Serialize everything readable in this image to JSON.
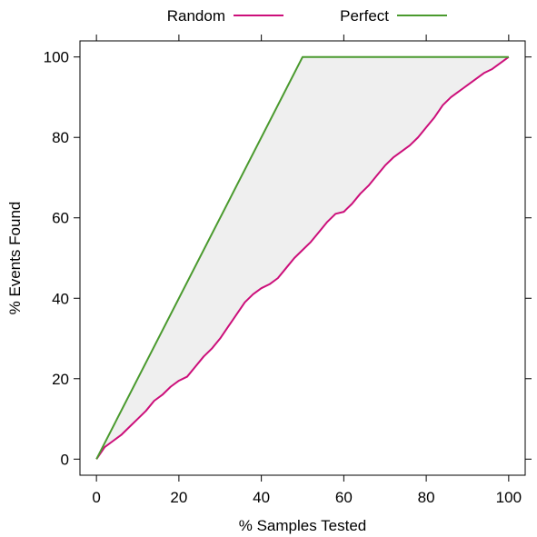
{
  "chart_data": {
    "type": "line",
    "xlabel": "% Samples Tested",
    "ylabel": "% Events Found",
    "xlim": [
      -4,
      104
    ],
    "ylim": [
      -4,
      104
    ],
    "xticks": [
      0,
      20,
      40,
      60,
      80,
      100
    ],
    "yticks": [
      0,
      20,
      40,
      60,
      80,
      100
    ],
    "grid": false,
    "legend": {
      "placement": "top"
    },
    "series": [
      {
        "name": "Random",
        "color": "#cc0f7a",
        "x": [
          0,
          1,
          2,
          4,
          6,
          8,
          10,
          12,
          14,
          16,
          18,
          20,
          22,
          24,
          26,
          28,
          30,
          32,
          34,
          36,
          38,
          40,
          42,
          44,
          46,
          48,
          50,
          52,
          54,
          56,
          58,
          60,
          62,
          64,
          66,
          68,
          70,
          72,
          74,
          76,
          78,
          80,
          82,
          84,
          86,
          88,
          90,
          92,
          94,
          96,
          98,
          100
        ],
        "y": [
          0,
          1.5,
          3,
          4.5,
          6,
          8,
          10,
          12,
          14.5,
          16,
          18,
          19.5,
          20.5,
          23,
          25.5,
          27.5,
          30,
          33,
          36,
          39,
          41,
          42.5,
          43.5,
          45,
          47.5,
          50,
          52,
          54,
          56.5,
          59,
          61,
          61.5,
          63.5,
          66,
          68,
          70.5,
          73,
          75,
          76.5,
          78,
          80,
          82.5,
          85,
          88,
          90,
          91.5,
          93,
          94.5,
          96,
          97,
          98.5,
          100
        ]
      },
      {
        "name": "Perfect",
        "color": "#4a9a2e",
        "x": [
          0,
          50,
          100
        ],
        "y": [
          0,
          100,
          100
        ]
      }
    ],
    "shaded_region": {
      "between": [
        "Random",
        "Perfect"
      ],
      "color": "#efefef"
    }
  }
}
